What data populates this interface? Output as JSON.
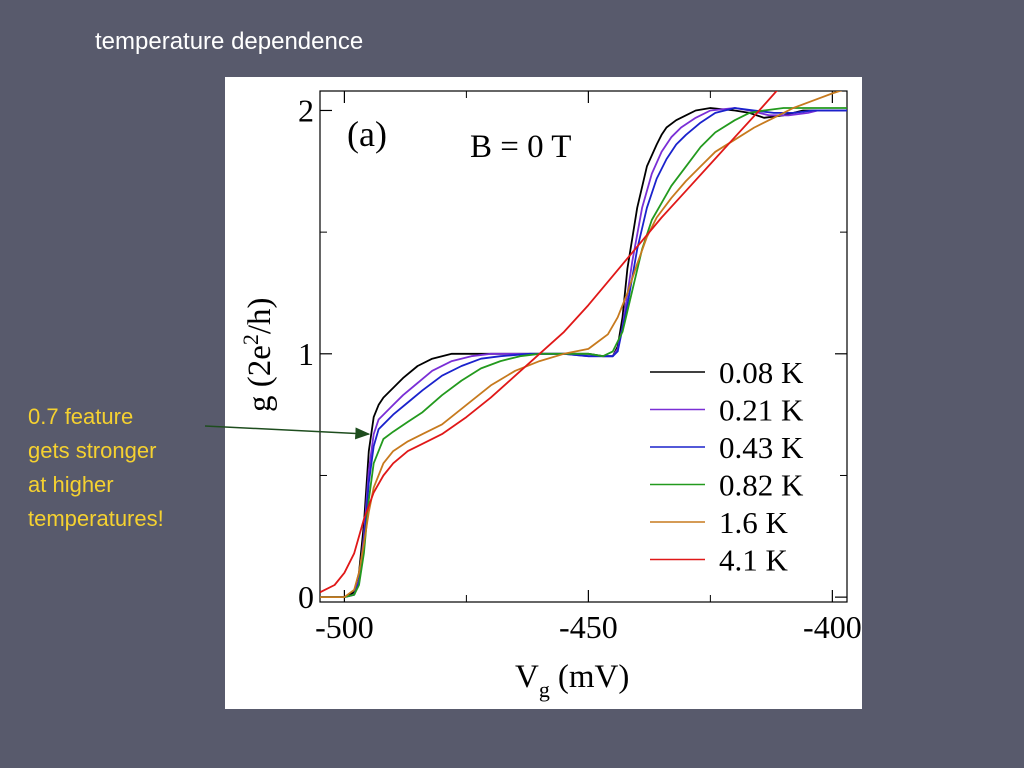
{
  "slide": {
    "title": "temperature dependence",
    "annotation_lines": [
      "0.7 feature",
      "gets stronger",
      "at higher",
      "temperatures!"
    ],
    "annotation_color": "#f5d130",
    "arrow_color": "#1e4d1e",
    "arrow_target": {
      "x": -495,
      "y": 0.67
    }
  },
  "chart_data": {
    "type": "line",
    "title": "",
    "panel_label": "(a)",
    "condition_label": "B = 0 T",
    "xlabel_main": "V",
    "xlabel_sub": "g",
    "xlabel_unit": "(mV)",
    "ylabel_a": "g (2e",
    "ylabel_sup": "2",
    "ylabel_b": "/h)",
    "xlim": [
      -505,
      -397
    ],
    "ylim": [
      -0.02,
      2.08
    ],
    "xticks": [
      -500,
      -450,
      -400
    ],
    "xtick_labels": [
      "-500",
      "-450",
      "-400"
    ],
    "yticks": [
      0,
      1,
      2
    ],
    "ytick_labels": [
      "0",
      "1",
      "2"
    ],
    "grid": false,
    "legend": "right",
    "series": [
      {
        "name": "0.08 K",
        "color": "#000000",
        "x": [
          -505,
          -500,
          -498,
          -497,
          -496,
          -495,
          -494,
          -493,
          -492,
          -490,
          -488,
          -485,
          -482,
          -478,
          -475,
          -470,
          -465,
          -460,
          -455,
          -450,
          -447,
          -445,
          -444,
          -443,
          -442,
          -440,
          -438,
          -436,
          -435,
          -434,
          -432,
          -430,
          -428,
          -425,
          -420,
          -417,
          -414,
          -410,
          -406,
          -403,
          -397
        ],
        "y": [
          0.0,
          0.0,
          0.02,
          0.1,
          0.3,
          0.6,
          0.74,
          0.79,
          0.82,
          0.86,
          0.9,
          0.95,
          0.98,
          1.0,
          1.0,
          1.0,
          1.0,
          1.0,
          1.0,
          1.0,
          0.99,
          0.99,
          1.03,
          1.15,
          1.35,
          1.6,
          1.77,
          1.86,
          1.9,
          1.93,
          1.96,
          1.98,
          2.0,
          2.01,
          2.0,
          1.99,
          1.97,
          1.98,
          2.0,
          2.0,
          2.0
        ]
      },
      {
        "name": "0.21 K",
        "color": "#7a2fd6",
        "x": [
          -505,
          -500,
          -498,
          -497,
          -496,
          -495,
          -494,
          -493,
          -490,
          -488,
          -485,
          -482,
          -478,
          -474,
          -470,
          -465,
          -460,
          -455,
          -450,
          -447,
          -445,
          -444,
          -443,
          -441,
          -439,
          -437,
          -435,
          -433,
          -431,
          -428,
          -425,
          -420,
          -417,
          -413,
          -409,
          -405,
          -403,
          -397
        ],
        "y": [
          0.0,
          0.0,
          0.01,
          0.07,
          0.25,
          0.52,
          0.67,
          0.73,
          0.79,
          0.83,
          0.88,
          0.93,
          0.97,
          0.99,
          1.0,
          1.0,
          1.0,
          1.0,
          0.99,
          0.99,
          0.99,
          1.02,
          1.11,
          1.38,
          1.6,
          1.74,
          1.83,
          1.89,
          1.93,
          1.97,
          2.0,
          2.01,
          2.0,
          1.98,
          1.98,
          1.99,
          2.0,
          2.0
        ]
      },
      {
        "name": "0.43 K",
        "color": "#1a22cc",
        "x": [
          -505,
          -500,
          -498,
          -497,
          -496,
          -495,
          -494,
          -493,
          -490,
          -487,
          -484,
          -480,
          -476,
          -472,
          -468,
          -462,
          -455,
          -450,
          -447,
          -445,
          -444,
          -442,
          -440,
          -438,
          -436,
          -434,
          -432,
          -430,
          -427,
          -424,
          -420,
          -416,
          -412,
          -408,
          -404,
          -397
        ],
        "y": [
          0.0,
          0.0,
          0.01,
          0.06,
          0.22,
          0.47,
          0.62,
          0.69,
          0.75,
          0.8,
          0.85,
          0.91,
          0.95,
          0.98,
          0.99,
          1.0,
          1.0,
          0.99,
          0.99,
          0.99,
          1.01,
          1.2,
          1.43,
          1.6,
          1.72,
          1.8,
          1.86,
          1.9,
          1.95,
          1.99,
          2.01,
          2.0,
          1.99,
          1.99,
          2.0,
          2.0
        ]
      },
      {
        "name": "0.82 K",
        "color": "#239a1e",
        "x": [
          -505,
          -500,
          -498,
          -497,
          -496,
          -495,
          -494,
          -492,
          -490,
          -487,
          -484,
          -480,
          -476,
          -472,
          -468,
          -464,
          -460,
          -455,
          -450,
          -447,
          -445,
          -443,
          -441,
          -439,
          -437,
          -435,
          -433,
          -430,
          -427,
          -424,
          -420,
          -417,
          -414,
          -410,
          -406,
          -403,
          -397
        ],
        "y": [
          0.0,
          0.0,
          0.01,
          0.05,
          0.18,
          0.4,
          0.55,
          0.65,
          0.68,
          0.72,
          0.76,
          0.83,
          0.89,
          0.94,
          0.97,
          0.99,
          1.0,
          1.0,
          1.0,
          0.99,
          1.01,
          1.09,
          1.26,
          1.43,
          1.55,
          1.62,
          1.69,
          1.77,
          1.85,
          1.91,
          1.96,
          1.99,
          2.0,
          2.01,
          2.01,
          2.01,
          2.01
        ]
      },
      {
        "name": "1.6 K",
        "color": "#c77a1e",
        "x": [
          -505,
          -500,
          -498,
          -497,
          -496,
          -495,
          -494,
          -492,
          -490,
          -487,
          -484,
          -480,
          -475,
          -470,
          -465,
          -460,
          -455,
          -450,
          -448,
          -446,
          -444,
          -442,
          -440,
          -438,
          -436,
          -433,
          -430,
          -427,
          -424,
          -420,
          -416,
          -412,
          -408,
          -404,
          -400,
          -397
        ],
        "y": [
          0.0,
          0.0,
          0.03,
          0.1,
          0.22,
          0.35,
          0.45,
          0.55,
          0.6,
          0.64,
          0.67,
          0.71,
          0.79,
          0.87,
          0.93,
          0.97,
          1.0,
          1.02,
          1.05,
          1.08,
          1.15,
          1.25,
          1.37,
          1.48,
          1.56,
          1.64,
          1.71,
          1.77,
          1.83,
          1.88,
          1.93,
          1.97,
          2.01,
          2.04,
          2.07,
          2.09
        ]
      },
      {
        "name": "4.1 K",
        "color": "#e01818",
        "x": [
          -505,
          -502,
          -500,
          -498,
          -496,
          -494,
          -492,
          -490,
          -487,
          -484,
          -480,
          -475,
          -470,
          -465,
          -460,
          -455,
          -450,
          -445,
          -440,
          -435,
          -430,
          -425,
          -420,
          -415,
          -411
        ],
        "y": [
          0.02,
          0.05,
          0.1,
          0.18,
          0.32,
          0.43,
          0.5,
          0.55,
          0.6,
          0.63,
          0.67,
          0.74,
          0.82,
          0.91,
          1.0,
          1.09,
          1.2,
          1.32,
          1.44,
          1.56,
          1.67,
          1.78,
          1.89,
          2.0,
          2.09
        ]
      }
    ]
  }
}
